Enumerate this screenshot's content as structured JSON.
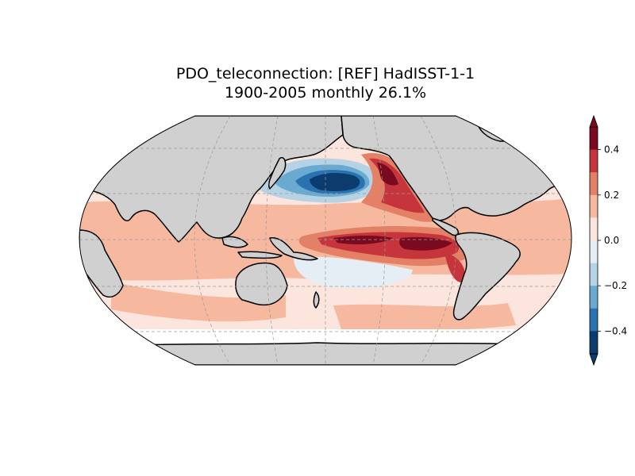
{
  "figure": {
    "title": "PDO_teleconnection: [REF] HadISST-1-1",
    "subtitle": "1900-2005 monthly 26.1%"
  },
  "colorbar": {
    "ticks": [
      "0.4",
      "0.2",
      "0.0",
      "−0.2",
      "−0.4"
    ],
    "levels": [
      {
        "value": 0.45,
        "color": "#7a0a1f"
      },
      {
        "value": 0.35,
        "color": "#c6353b"
      },
      {
        "value": 0.25,
        "color": "#e48065"
      },
      {
        "value": 0.15,
        "color": "#f7b8a0"
      },
      {
        "value": 0.05,
        "color": "#fbe5dc"
      },
      {
        "value": -0.05,
        "color": "#e6eef5"
      },
      {
        "value": -0.15,
        "color": "#b6d2e5"
      },
      {
        "value": -0.25,
        "color": "#6aaad0"
      },
      {
        "value": -0.35,
        "color": "#2a73b0"
      },
      {
        "value": -0.45,
        "color": "#0c3c6d"
      }
    ],
    "extend": "both",
    "range": [
      -0.5,
      0.5
    ]
  },
  "map": {
    "projection": "robinson",
    "central_longitude": 180,
    "land_color": "#d0d0d0",
    "gridlines": true
  }
}
